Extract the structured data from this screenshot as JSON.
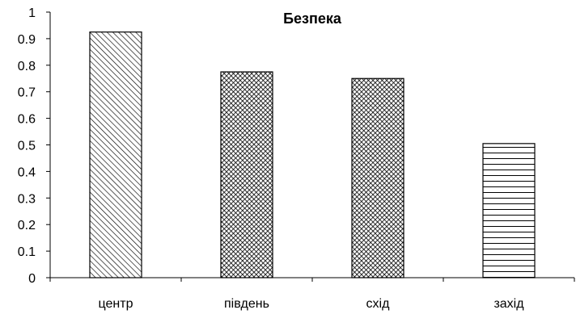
{
  "chart_data": {
    "type": "bar",
    "title": "Безпека",
    "xlabel": "",
    "ylabel": "",
    "categories": [
      "центр",
      "південь",
      "схід",
      "захід"
    ],
    "values": [
      0.925,
      0.775,
      0.75,
      0.505
    ],
    "bar_patterns": [
      "diagonal-hatch",
      "crosshatch",
      "crosshatch",
      "horizontal-lines"
    ],
    "ylim": [
      0,
      1
    ],
    "yticks": [
      "0",
      "0.1",
      "0.2",
      "0.3",
      "0.4",
      "0.5",
      "0.6",
      "0.7",
      "0.8",
      "0.9",
      "1"
    ],
    "grid": false,
    "legend": "none",
    "colors": {
      "bar_fill": "#ffffff",
      "pattern": "#000000",
      "axis": "#000000"
    }
  }
}
